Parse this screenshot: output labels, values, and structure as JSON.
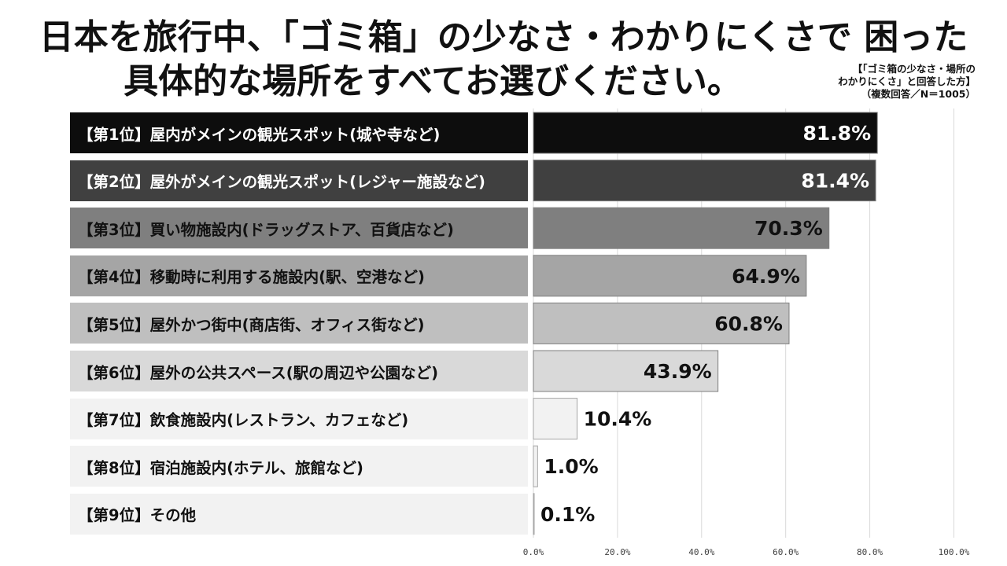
{
  "title_line1": "日本を旅行中、「ゴミ箱」の少なさ・わかりにくさで 困った",
  "title_line2": "具体的な場所をすべてお選びください。",
  "note_line1": "【「ゴミ箱の少なさ・場所の",
  "note_line2": "わかりにくさ」と回答した方】",
  "note_line3": "（複数回答／N＝1005）",
  "chart_data": {
    "type": "bar",
    "orientation": "horizontal",
    "categories": [
      "【第1位】屋内がメインの観光スポット(城や寺など)",
      "【第2位】屋外がメインの観光スポット(レジャー施設など)",
      "【第3位】買い物施設内(ドラッグストア、百貨店など)",
      "【第4位】移動時に利用する施設内(駅、空港など)",
      "【第5位】屋外かつ街中(商店街、オフィス街など)",
      "【第6位】屋外の公共スペース(駅の周辺や公園など)",
      "【第7位】飲食施設内(レストラン、カフェなど)",
      "【第8位】宿泊施設内(ホテル、旅館など)",
      "【第9位】その他"
    ],
    "values": [
      81.8,
      81.4,
      70.3,
      64.9,
      60.8,
      43.9,
      10.4,
      1.0,
      0.1
    ],
    "value_labels": [
      "81.8%",
      "81.4%",
      "70.3%",
      "64.9%",
      "60.8%",
      "43.9%",
      "10.4%",
      "1.0%",
      "0.1%"
    ],
    "xlim": [
      0,
      100
    ],
    "xticks": [
      0,
      20,
      40,
      60,
      80,
      100
    ],
    "xtick_labels": [
      "0.0%",
      "20.0%",
      "40.0%",
      "60.0%",
      "80.0%",
      "100.0%"
    ],
    "grid": "vertical",
    "legend": "none",
    "colors": [
      "#0d0d0d",
      "#404040",
      "#7f7f7f",
      "#a5a5a5",
      "#bfbfbf",
      "#d9d9d9",
      "#f2f2f2",
      "#f2f2f2",
      "#f2f2f2"
    ]
  }
}
